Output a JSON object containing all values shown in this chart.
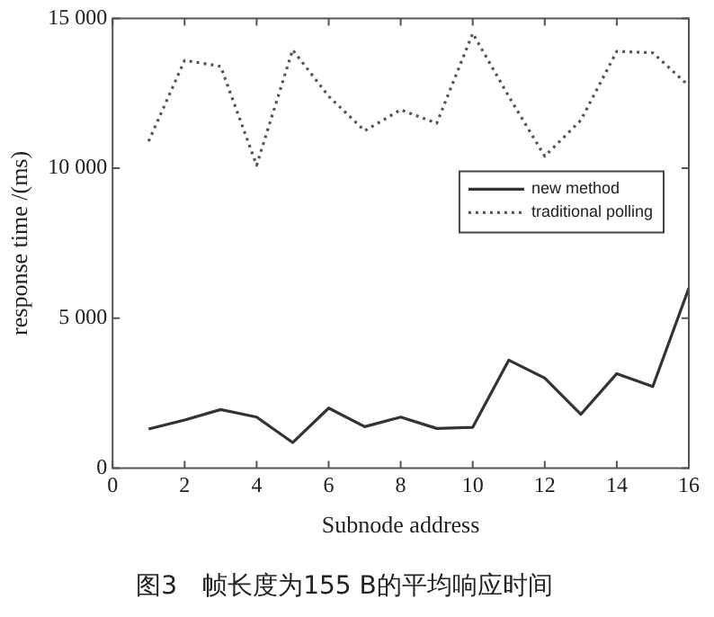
{
  "chart_data": {
    "type": "line",
    "title": "图3　帧长度为155 B的平均响应时间",
    "xlabel": "Subnode address",
    "ylabel": "response time /(ms)",
    "x": [
      1,
      2,
      3,
      4,
      5,
      6,
      7,
      8,
      9,
      10,
      11,
      12,
      13,
      14,
      15,
      16
    ],
    "series": [
      {
        "name": "new method",
        "color": "#333333",
        "line_style": "solid",
        "values": [
          1300,
          1600,
          1950,
          1700,
          850,
          2000,
          1380,
          1700,
          1320,
          1360,
          3600,
          3000,
          1790,
          3150,
          2720,
          6000
        ]
      },
      {
        "name": "traditional polling",
        "color": "#555555",
        "line_style": "dotted",
        "values": [
          10900,
          13600,
          13400,
          10100,
          13950,
          12400,
          11250,
          11950,
          11500,
          14500,
          12400,
          10400,
          11600,
          13900,
          13850,
          12750
        ]
      }
    ],
    "xlim": [
      0,
      16
    ],
    "xticks": [
      0,
      2,
      4,
      6,
      8,
      10,
      12,
      14,
      16
    ],
    "ylim": [
      0,
      15000
    ],
    "yticks": [
      0,
      {
        "value": 5000,
        "label": "5 000"
      },
      {
        "value": 10000,
        "label": "10 000"
      },
      {
        "value": 15000,
        "label": "15 000"
      }
    ],
    "grid": false,
    "legend": "right",
    "marker": "none"
  }
}
